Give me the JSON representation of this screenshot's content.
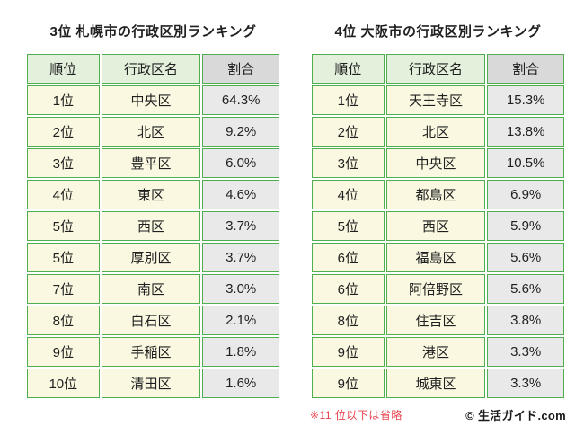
{
  "colors": {
    "table_border_green": "#4fae4f",
    "header_green_fill": "#e3f0dc",
    "header_gray_fill": "#d9d9d9",
    "body_cream_fill": "#faf8e1",
    "body_gray_fill": "#e9e9e9",
    "footnote_red": "#e8404d",
    "background": "#ffffff"
  },
  "footnote": {
    "text": "※11 位以下は省略"
  },
  "credit": {
    "text": "© 生活ガイド.com"
  },
  "chart_data": [
    {
      "type": "table",
      "title": "3位 札幌市の行政区別ランキング",
      "columns": [
        "順位",
        "行政区名",
        "割合"
      ],
      "rows": [
        [
          "1位",
          "中央区",
          "64.3%"
        ],
        [
          "2位",
          "北区",
          "9.2%"
        ],
        [
          "3位",
          "豊平区",
          "6.0%"
        ],
        [
          "4位",
          "東区",
          "4.6%"
        ],
        [
          "5位",
          "西区",
          "3.7%"
        ],
        [
          "5位",
          "厚別区",
          "3.7%"
        ],
        [
          "7位",
          "南区",
          "3.0%"
        ],
        [
          "8位",
          "白石区",
          "2.1%"
        ],
        [
          "9位",
          "手稲区",
          "1.8%"
        ],
        [
          "10位",
          "清田区",
          "1.6%"
        ]
      ]
    },
    {
      "type": "table",
      "title": "4位 大阪市の行政区別ランキング",
      "columns": [
        "順位",
        "行政区名",
        "割合"
      ],
      "rows": [
        [
          "1位",
          "天王寺区",
          "15.3%"
        ],
        [
          "2位",
          "北区",
          "13.8%"
        ],
        [
          "3位",
          "中央区",
          "10.5%"
        ],
        [
          "4位",
          "都島区",
          "6.9%"
        ],
        [
          "5位",
          "西区",
          "5.9%"
        ],
        [
          "6位",
          "福島区",
          "5.6%"
        ],
        [
          "6位",
          "阿倍野区",
          "5.6%"
        ],
        [
          "8位",
          "住吉区",
          "3.8%"
        ],
        [
          "9位",
          "港区",
          "3.3%"
        ],
        [
          "9位",
          "城東区",
          "3.3%"
        ]
      ]
    }
  ]
}
